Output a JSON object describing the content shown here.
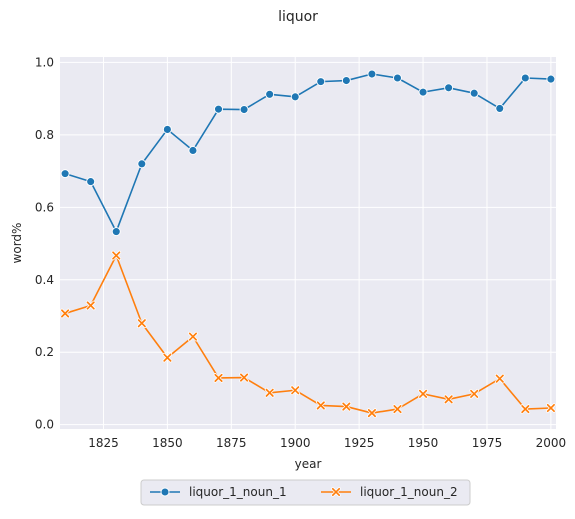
{
  "chart_data": {
    "type": "line",
    "title": "liquor",
    "xlabel": "year",
    "ylabel": "word%",
    "xlim": [
      1808,
      2002
    ],
    "ylim": [
      -0.012,
      1.015
    ],
    "xticks": [
      1825,
      1850,
      1875,
      1900,
      1925,
      1950,
      1975,
      2000
    ],
    "yticks": [
      0.0,
      0.2,
      0.4,
      0.6,
      0.8,
      1.0
    ],
    "xtick_labels": [
      "1825",
      "1850",
      "1875",
      "1900",
      "1925",
      "1950",
      "1975",
      "2000"
    ],
    "ytick_labels": [
      "0.0",
      "0.2",
      "0.4",
      "0.6",
      "0.8",
      "1.0"
    ],
    "grid": true,
    "legend_position": "bottom-center",
    "x": [
      1810,
      1820,
      1830,
      1840,
      1850,
      1860,
      1870,
      1880,
      1890,
      1900,
      1910,
      1920,
      1930,
      1940,
      1950,
      1960,
      1970,
      1980,
      1990,
      2000
    ],
    "series": [
      {
        "name": "liquor_1_noun_1",
        "color": "#1f77b4",
        "marker": "circle",
        "values": [
          0.693,
          0.671,
          0.533,
          0.72,
          0.815,
          0.757,
          0.871,
          0.87,
          0.912,
          0.905,
          0.947,
          0.95,
          0.968,
          0.957,
          0.918,
          0.93,
          0.915,
          0.873,
          0.957,
          0.954
        ]
      },
      {
        "name": "liquor_1_noun_2",
        "color": "#ff7f0e",
        "marker": "x",
        "values": [
          0.307,
          0.329,
          0.467,
          0.28,
          0.185,
          0.243,
          0.129,
          0.13,
          0.088,
          0.095,
          0.053,
          0.05,
          0.032,
          0.043,
          0.085,
          0.07,
          0.085,
          0.127,
          0.043,
          0.046
        ]
      }
    ]
  }
}
